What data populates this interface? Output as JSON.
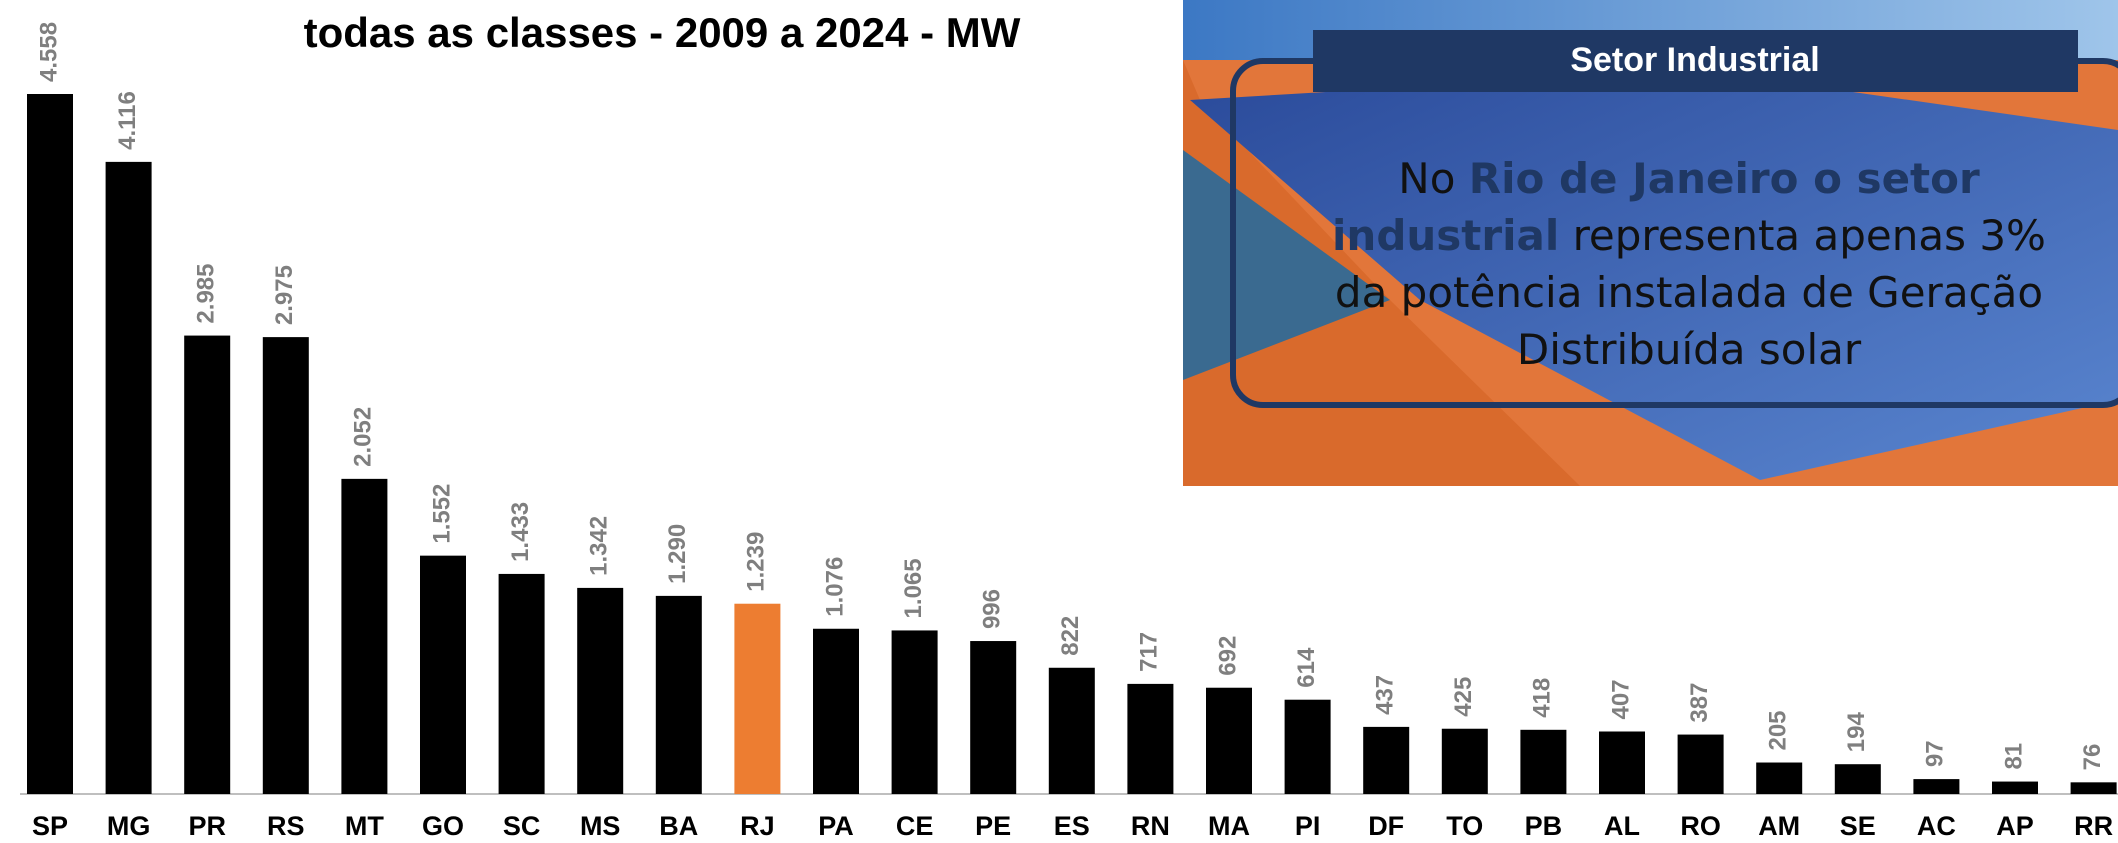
{
  "chart_data": {
    "type": "bar",
    "title": "todas as classes - 2009 a 2024 - MW",
    "categories": [
      "SP",
      "MG",
      "PR",
      "RS",
      "MT",
      "GO",
      "SC",
      "MS",
      "BA",
      "RJ",
      "PA",
      "CE",
      "PE",
      "ES",
      "RN",
      "MA",
      "PI",
      "DF",
      "TO",
      "PB",
      "AL",
      "RO",
      "AM",
      "SE",
      "AC",
      "AP",
      "RR"
    ],
    "values": [
      4558,
      4116,
      2985,
      2975,
      2052,
      1552,
      1433,
      1342,
      1290,
      1239,
      1076,
      1065,
      996,
      822,
      717,
      692,
      614,
      437,
      425,
      418,
      407,
      387,
      205,
      194,
      97,
      81,
      76
    ],
    "value_labels": [
      "4.558",
      "4.116",
      "2.985",
      "2.975",
      "2.052",
      "1.552",
      "1.433",
      "1.342",
      "1.290",
      "1.239",
      "1.076",
      "1.065",
      "996",
      "822",
      "717",
      "692",
      "614",
      "437",
      "425",
      "418",
      "407",
      "387",
      "205",
      "194",
      "97",
      "81",
      "76"
    ],
    "colors": [
      "#000000",
      "#000000",
      "#000000",
      "#000000",
      "#000000",
      "#000000",
      "#000000",
      "#000000",
      "#000000",
      "#ed7d31",
      "#000000",
      "#000000",
      "#000000",
      "#000000",
      "#000000",
      "#000000",
      "#000000",
      "#000000",
      "#000000",
      "#000000",
      "#000000",
      "#000000",
      "#000000",
      "#000000",
      "#000000",
      "#000000",
      "#000000"
    ]
  },
  "panel": {
    "title": "Setor Industrial",
    "text": {
      "lead": "No ",
      "highlight": "Rio de Janeiro  o setor industrial",
      "rest": " representa apenas 3% da potência instalada de Geração Distribuída solar"
    }
  }
}
